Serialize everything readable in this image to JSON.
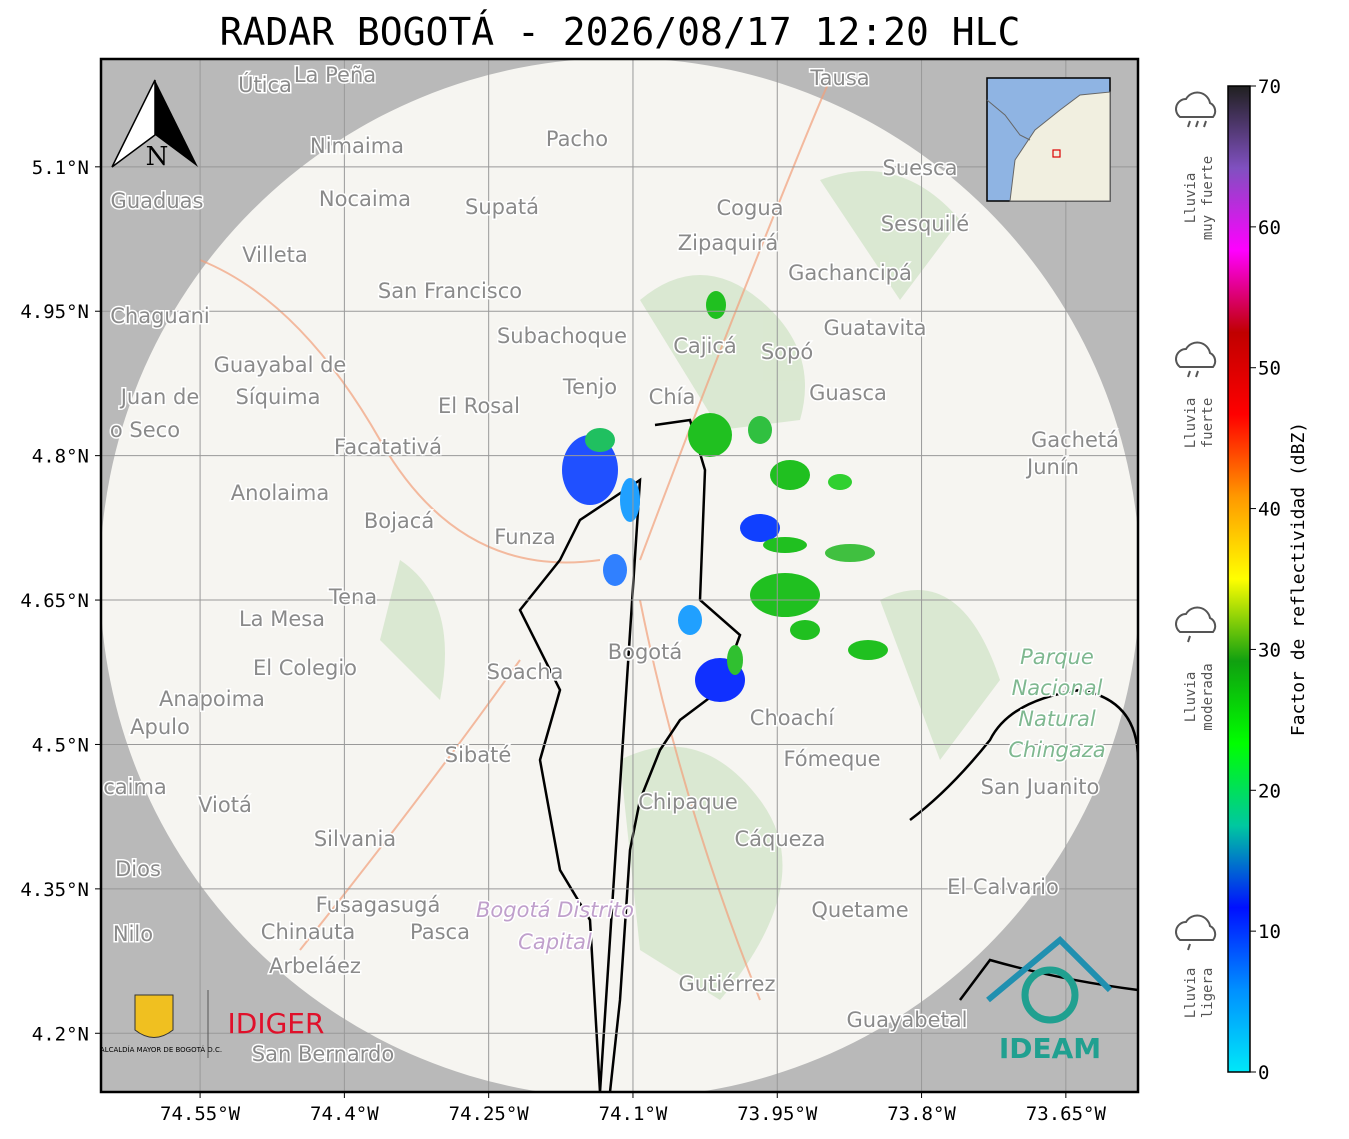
{
  "chart_data": {
    "type": "radar-map",
    "title": "RADAR BOGOTÁ - 2026/08/17 12:20 HLC",
    "xlim": [
      -74.653,
      -73.575
    ],
    "ylim": [
      4.139,
      5.212
    ],
    "xticks": [
      {
        "value": -74.55,
        "label": "74.55°W"
      },
      {
        "value": -74.4,
        "label": "74.4°W"
      },
      {
        "value": -74.25,
        "label": "74.25°W"
      },
      {
        "value": -74.1,
        "label": "74.1°W"
      },
      {
        "value": -73.95,
        "label": "73.95°W"
      },
      {
        "value": -73.8,
        "label": "73.8°W"
      },
      {
        "value": -73.65,
        "label": "73.65°W"
      }
    ],
    "yticks": [
      {
        "value": 5.1,
        "label": "5.1°N"
      },
      {
        "value": 4.95,
        "label": "4.95°N"
      },
      {
        "value": 4.8,
        "label": "4.8°N"
      },
      {
        "value": 4.65,
        "label": "4.65°N"
      },
      {
        "value": 4.5,
        "label": "4.5°N"
      },
      {
        "value": 4.35,
        "label": "4.35°N"
      },
      {
        "value": 4.2,
        "label": "4.2°N"
      }
    ],
    "grid": true,
    "north": "N",
    "colorbar": {
      "label": "Factor de reflectividad (dBZ)",
      "lim": [
        0,
        70
      ],
      "ticks": [
        0,
        10,
        20,
        30,
        40,
        50,
        60,
        70
      ],
      "colors": [
        "#00e8f8",
        "#0090ff",
        "#0010ff",
        "#00c8a0",
        "#00ff00",
        "#10a010",
        "#ffff00",
        "#ff9900",
        "#ff0000",
        "#c00000",
        "#ff00ff",
        "#8050c0",
        "#202020"
      ]
    },
    "rain_levels": [
      [
        "Lluvia",
        "muy fuerte"
      ],
      [
        "Lluvia",
        "fuerte"
      ],
      [
        "Lluvia",
        "moderada"
      ],
      [
        "Lluvia",
        "ligera"
      ]
    ],
    "logos": {
      "left": "ALCALDÍA MAYOR DE BOGOTÁ D.C.",
      "middle": "IDIGER",
      "right": "IDEAM"
    },
    "places": [
      "Útica",
      "La Peña",
      "Tausa",
      "Pacho",
      "Nimaima",
      "Guaduas",
      "Nocaima",
      "Supatá",
      "Cogua",
      "Suesca",
      "Sesquilé",
      "Zipaquirá",
      "Villeta",
      "Gachancipá",
      "San Francisco",
      "Chaguani",
      "Guatavita",
      "Subachoque",
      "Cajicá",
      "Sopó",
      "Guayabal de",
      "Síquima",
      "Tenjo",
      "Chía",
      "Guasca",
      "Juan de",
      "o Seco",
      "El Rosal",
      "Gachetá",
      "Junín",
      "Facatativá",
      "Anolaima",
      "Bojacá",
      "Funza",
      "Tena",
      "La Mesa",
      "El Colegio",
      "Soacha",
      "Bogotá",
      "Anapoima",
      "Apulo",
      "Choachí",
      "Sibaté",
      "Fómeque",
      "San Juanito",
      "caima",
      "Viotá",
      "Chipaque",
      "Silvania",
      "Cáqueza",
      "Dios",
      "El Calvario",
      "Fusagasugá",
      "Quetame",
      "Nilo",
      "Chinauta",
      "Pasca",
      "Arbeláez",
      "Gutiérrez",
      "Guayabetal",
      "San Bernardo"
    ],
    "park": [
      "Parque",
      "Nacional",
      "Natural",
      "Chingaza"
    ],
    "district": [
      "Bogotá Distrito",
      "Capital"
    ]
  }
}
